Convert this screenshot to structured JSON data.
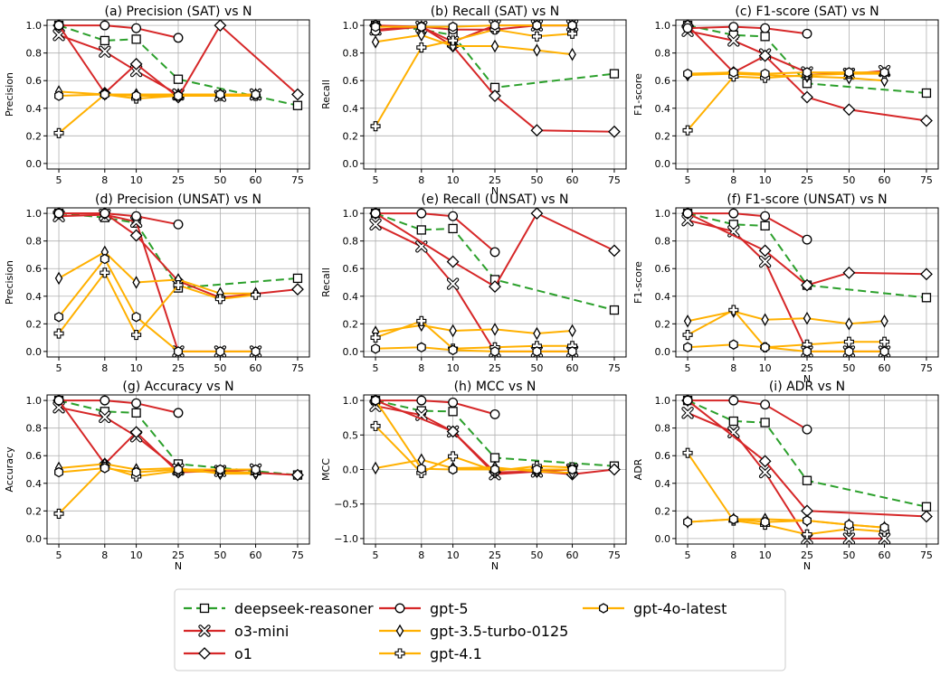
{
  "chart_data": [
    {
      "id": "a",
      "type": "line",
      "title": "(a) Precision (SAT) vs N",
      "xlabel": "",
      "ylabel": "Precision",
      "ylim": [
        0,
        1
      ],
      "yticks": [
        0,
        0.2,
        0.4,
        0.6,
        0.8,
        1.0
      ],
      "ytick_labels": [
        "0.0",
        "0.2",
        "0.4",
        "0.6",
        "0.8",
        "1.0"
      ],
      "x": [
        "5",
        "8",
        "10",
        "25",
        "50",
        "60",
        "75"
      ],
      "series": [
        {
          "name": "deepseek-reasoner",
          "values": [
            1.0,
            0.89,
            0.9,
            0.61,
            null,
            null,
            0.42
          ]
        },
        {
          "name": "o3-mini",
          "values": [
            0.93,
            0.81,
            0.67,
            0.5,
            0.49,
            0.5,
            null
          ]
        },
        {
          "name": "o1",
          "values": [
            1.0,
            0.51,
            0.72,
            0.48,
            1.0,
            null,
            0.5
          ]
        },
        {
          "name": "gpt-5",
          "values": [
            1.0,
            1.0,
            0.98,
            0.91,
            null,
            null,
            null
          ]
        },
        {
          "name": "gpt-3.5-turbo-0125",
          "values": [
            0.52,
            0.5,
            0.5,
            0.5,
            0.5,
            0.5,
            null
          ]
        },
        {
          "name": "gpt-4.1",
          "values": [
            0.22,
            0.5,
            0.47,
            0.49,
            0.49,
            0.49,
            null
          ]
        },
        {
          "name": "gpt-4o-latest",
          "values": [
            0.49,
            0.5,
            0.49,
            0.49,
            0.5,
            0.5,
            null
          ]
        }
      ]
    },
    {
      "id": "b",
      "type": "line",
      "title": "(b) Recall (SAT) vs N",
      "xlabel": "N",
      "ylabel": "Recall",
      "ylim": [
        0,
        1
      ],
      "yticks": [
        0,
        0.2,
        0.4,
        0.6,
        0.8,
        1.0
      ],
      "ytick_labels": [
        "0.0",
        "0.2",
        "0.4",
        "0.6",
        "0.8",
        "1.0"
      ],
      "x": [
        "5",
        "8",
        "10",
        "25",
        "50",
        "60",
        "75"
      ],
      "series": [
        {
          "name": "deepseek-reasoner",
          "values": [
            1.0,
            0.97,
            0.93,
            0.55,
            null,
            null,
            0.65
          ]
        },
        {
          "name": "o3-mini",
          "values": [
            0.97,
            0.99,
            0.88,
            1.0,
            1.0,
            1.0,
            null
          ]
        },
        {
          "name": "o1",
          "values": [
            1.0,
            0.99,
            0.85,
            0.49,
            0.24,
            null,
            0.23
          ]
        },
        {
          "name": "gpt-5",
          "values": [
            0.96,
            0.99,
            0.97,
            0.97,
            1.0,
            1.0,
            null
          ]
        },
        {
          "name": "gpt-3.5-turbo-0125",
          "values": [
            0.88,
            0.93,
            0.85,
            0.85,
            0.82,
            0.79,
            null
          ]
        },
        {
          "name": "gpt-4.1",
          "values": [
            0.27,
            0.84,
            0.89,
            0.97,
            0.92,
            0.94,
            null
          ]
        },
        {
          "name": "gpt-4o-latest",
          "values": [
            0.99,
            0.99,
            0.99,
            1.0,
            1.0,
            1.0,
            null
          ]
        }
      ]
    },
    {
      "id": "c",
      "type": "line",
      "title": "(c) F1-score (SAT) vs N",
      "xlabel": "",
      "ylabel": "F1-score",
      "ylim": [
        0,
        1
      ],
      "yticks": [
        0,
        0.2,
        0.4,
        0.6,
        0.8,
        1.0
      ],
      "ytick_labels": [
        "0.0",
        "0.2",
        "0.4",
        "0.6",
        "0.8",
        "1.0"
      ],
      "x": [
        "5",
        "8",
        "10",
        "25",
        "50",
        "60",
        "75"
      ],
      "series": [
        {
          "name": "deepseek-reasoner",
          "values": [
            1.0,
            0.93,
            0.92,
            0.58,
            null,
            null,
            0.51
          ]
        },
        {
          "name": "o3-mini",
          "values": [
            0.96,
            0.89,
            0.79,
            0.66,
            0.65,
            0.67,
            null
          ]
        },
        {
          "name": "o1",
          "values": [
            1.0,
            0.66,
            0.78,
            0.48,
            0.39,
            null,
            0.31
          ]
        },
        {
          "name": "gpt-5",
          "values": [
            0.98,
            0.99,
            0.98,
            0.94,
            null,
            null,
            null
          ]
        },
        {
          "name": "gpt-3.5-turbo-0125",
          "values": [
            0.64,
            0.65,
            0.64,
            0.63,
            0.62,
            0.6,
            null
          ]
        },
        {
          "name": "gpt-4.1",
          "values": [
            0.24,
            0.63,
            0.62,
            0.64,
            0.65,
            0.65,
            null
          ]
        },
        {
          "name": "gpt-4o-latest",
          "values": [
            0.65,
            0.66,
            0.65,
            0.66,
            0.66,
            0.66,
            null
          ]
        }
      ]
    },
    {
      "id": "d",
      "type": "line",
      "title": "(d) Precision (UNSAT) vs N",
      "xlabel": "",
      "ylabel": "Precision",
      "ylim": [
        0,
        1
      ],
      "yticks": [
        0,
        0.2,
        0.4,
        0.6,
        0.8,
        1.0
      ],
      "ytick_labels": [
        "0.0",
        "0.2",
        "0.4",
        "0.6",
        "0.8",
        "1.0"
      ],
      "x": [
        "5",
        "8",
        "10",
        "25",
        "50",
        "60",
        "75"
      ],
      "series": [
        {
          "name": "deepseek-reasoner",
          "values": [
            1.0,
            0.97,
            0.93,
            0.46,
            null,
            null,
            0.53
          ]
        },
        {
          "name": "o3-mini",
          "values": [
            0.98,
            0.99,
            0.94,
            0.0,
            0.0,
            0.0,
            null
          ]
        },
        {
          "name": "o1",
          "values": [
            1.0,
            1.0,
            0.84,
            0.51,
            0.39,
            null,
            0.45
          ]
        },
        {
          "name": "gpt-5",
          "values": [
            1.0,
            1.0,
            0.98,
            0.92,
            null,
            null,
            null
          ]
        },
        {
          "name": "gpt-3.5-turbo-0125",
          "values": [
            0.53,
            0.72,
            0.5,
            0.52,
            0.42,
            0.42,
            null
          ]
        },
        {
          "name": "gpt-4.1",
          "values": [
            0.13,
            0.57,
            0.12,
            0.48,
            0.38,
            0.41,
            null
          ]
        },
        {
          "name": "gpt-4o-latest",
          "values": [
            0.25,
            0.67,
            0.25,
            0.0,
            0.0,
            0.0,
            null
          ]
        }
      ]
    },
    {
      "id": "e",
      "type": "line",
      "title": "(e) Recall (UNSAT) vs N",
      "xlabel": "",
      "ylabel": "Recall",
      "ylim": [
        0,
        1
      ],
      "yticks": [
        0,
        0.2,
        0.4,
        0.6,
        0.8,
        1.0
      ],
      "ytick_labels": [
        "0.0",
        "0.2",
        "0.4",
        "0.6",
        "0.8",
        "1.0"
      ],
      "x": [
        "5",
        "8",
        "10",
        "25",
        "50",
        "60",
        "75"
      ],
      "series": [
        {
          "name": "deepseek-reasoner",
          "values": [
            1.0,
            0.88,
            0.89,
            0.52,
            null,
            null,
            0.3
          ]
        },
        {
          "name": "o3-mini",
          "values": [
            0.92,
            0.76,
            0.49,
            0.0,
            0.0,
            0.0,
            null
          ]
        },
        {
          "name": "o1",
          "values": [
            1.0,
            null,
            0.65,
            0.47,
            1.0,
            null,
            0.73
          ]
        },
        {
          "name": "gpt-5",
          "values": [
            1.0,
            1.0,
            0.98,
            0.72,
            null,
            null,
            null
          ]
        },
        {
          "name": "gpt-3.5-turbo-0125",
          "values": [
            0.14,
            0.19,
            0.15,
            0.16,
            0.13,
            0.15,
            null
          ]
        },
        {
          "name": "gpt-4.1",
          "values": [
            0.1,
            0.22,
            0.02,
            0.03,
            0.04,
            0.04,
            null
          ]
        },
        {
          "name": "gpt-4o-latest",
          "values": [
            0.02,
            0.03,
            0.01,
            0.0,
            0.0,
            0.0,
            null
          ]
        }
      ]
    },
    {
      "id": "f",
      "type": "line",
      "title": "(f) F1-score (UNSAT) vs N",
      "xlabel": "N",
      "ylabel": "F1-score",
      "ylim": [
        0,
        1
      ],
      "yticks": [
        0,
        0.2,
        0.4,
        0.6,
        0.8,
        1.0
      ],
      "ytick_labels": [
        "0.0",
        "0.2",
        "0.4",
        "0.6",
        "0.8",
        "1.0"
      ],
      "x": [
        "5",
        "8",
        "10",
        "25",
        "50",
        "60",
        "75"
      ],
      "series": [
        {
          "name": "deepseek-reasoner",
          "values": [
            1.0,
            0.92,
            0.91,
            0.48,
            null,
            null,
            0.39
          ]
        },
        {
          "name": "o3-mini",
          "values": [
            0.95,
            0.87,
            0.65,
            0.0,
            0.0,
            0.0,
            null
          ]
        },
        {
          "name": "o1",
          "values": [
            1.0,
            null,
            0.73,
            0.48,
            0.57,
            null,
            0.56
          ]
        },
        {
          "name": "gpt-5",
          "values": [
            1.0,
            1.0,
            0.98,
            0.81,
            null,
            null,
            null
          ]
        },
        {
          "name": "gpt-3.5-turbo-0125",
          "values": [
            0.22,
            0.29,
            0.23,
            0.24,
            0.2,
            0.22,
            null
          ]
        },
        {
          "name": "gpt-4.1",
          "values": [
            0.12,
            0.3,
            0.03,
            0.05,
            0.07,
            0.07,
            null
          ]
        },
        {
          "name": "gpt-4o-latest",
          "values": [
            0.03,
            0.05,
            0.03,
            0.0,
            0.0,
            0.0,
            null
          ]
        }
      ]
    },
    {
      "id": "g",
      "type": "line",
      "title": "(g) Accuracy vs N",
      "xlabel": "N",
      "ylabel": "Accuracy",
      "ylim": [
        0,
        1
      ],
      "yticks": [
        0,
        0.2,
        0.4,
        0.6,
        0.8,
        1.0
      ],
      "ytick_labels": [
        "0.0",
        "0.2",
        "0.4",
        "0.6",
        "0.8",
        "1.0"
      ],
      "x": [
        "5",
        "8",
        "10",
        "25",
        "50",
        "60",
        "75"
      ],
      "series": [
        {
          "name": "deepseek-reasoner",
          "values": [
            1.0,
            0.92,
            0.91,
            0.54,
            null,
            null,
            0.46
          ]
        },
        {
          "name": "o3-mini",
          "values": [
            0.95,
            0.88,
            0.74,
            0.5,
            0.49,
            0.5,
            null
          ]
        },
        {
          "name": "o1",
          "values": [
            1.0,
            0.54,
            0.77,
            0.48,
            0.49,
            null,
            0.46
          ]
        },
        {
          "name": "gpt-5",
          "values": [
            1.0,
            1.0,
            0.98,
            0.91,
            null,
            null,
            null
          ]
        },
        {
          "name": "gpt-3.5-turbo-0125",
          "values": [
            0.51,
            0.54,
            0.5,
            0.51,
            0.47,
            0.47,
            null
          ]
        },
        {
          "name": "gpt-4.1",
          "values": [
            0.18,
            0.52,
            0.45,
            0.49,
            0.48,
            0.48,
            null
          ]
        },
        {
          "name": "gpt-4o-latest",
          "values": [
            0.48,
            0.51,
            0.48,
            0.5,
            0.5,
            0.5,
            null
          ]
        }
      ]
    },
    {
      "id": "h",
      "type": "line",
      "title": "(h) MCC vs N",
      "xlabel": "N",
      "ylabel": "MCC",
      "ylim": [
        -1,
        1
      ],
      "yticks": [
        -1,
        -0.5,
        0,
        0.5,
        1
      ],
      "ytick_labels": [
        "−1.0",
        "−0.5",
        "0.0",
        "0.5",
        "1.0"
      ],
      "x": [
        "5",
        "8",
        "10",
        "25",
        "50",
        "60",
        "75"
      ],
      "series": [
        {
          "name": "deepseek-reasoner",
          "values": [
            1.0,
            0.85,
            0.84,
            0.17,
            null,
            null,
            0.05
          ]
        },
        {
          "name": "o3-mini",
          "values": [
            0.92,
            0.79,
            0.55,
            -0.07,
            -0.03,
            0.0,
            null
          ]
        },
        {
          "name": "o1",
          "values": [
            1.0,
            null,
            0.55,
            -0.04,
            -0.03,
            -0.07,
            0.0
          ]
        },
        {
          "name": "gpt-5",
          "values": [
            1.0,
            1.0,
            0.97,
            0.8,
            null,
            null,
            null
          ]
        },
        {
          "name": "gpt-3.5-turbo-0125",
          "values": [
            0.02,
            0.14,
            0.02,
            0.03,
            -0.03,
            -0.05,
            null
          ]
        },
        {
          "name": "gpt-4.1",
          "values": [
            0.63,
            -0.05,
            0.19,
            -0.02,
            0.05,
            0.03,
            null
          ]
        },
        {
          "name": "gpt-4o-latest",
          "values": [
            1.0,
            0.01,
            0.0,
            0.0,
            0.0,
            0.0,
            null
          ]
        }
      ]
    },
    {
      "id": "i",
      "type": "line",
      "title": "(i) ADR vs N",
      "xlabel": "N",
      "ylabel": "ADR",
      "ylim": [
        0,
        1
      ],
      "yticks": [
        0,
        0.2,
        0.4,
        0.6,
        0.8,
        1.0
      ],
      "ytick_labels": [
        "0.0",
        "0.2",
        "0.4",
        "0.6",
        "0.8",
        "1.0"
      ],
      "x": [
        "5",
        "8",
        "10",
        "25",
        "50",
        "60",
        "75"
      ],
      "series": [
        {
          "name": "deepseek-reasoner",
          "values": [
            1.0,
            0.85,
            0.84,
            0.42,
            null,
            null,
            0.23
          ]
        },
        {
          "name": "o3-mini",
          "values": [
            0.91,
            0.77,
            0.48,
            0.0,
            0.0,
            0.0,
            null
          ]
        },
        {
          "name": "o1",
          "values": [
            1.0,
            null,
            0.56,
            0.2,
            null,
            null,
            0.16
          ]
        },
        {
          "name": "gpt-5",
          "values": [
            1.0,
            1.0,
            0.97,
            0.79,
            null,
            null,
            null
          ]
        },
        {
          "name": "gpt-3.5-turbo-0125",
          "values": [
            0.12,
            0.14,
            0.14,
            0.13,
            0.1,
            0.08,
            null
          ]
        },
        {
          "name": "gpt-4.1",
          "values": [
            0.62,
            0.13,
            0.1,
            0.03,
            0.07,
            0.05,
            null
          ]
        },
        {
          "name": "gpt-4o-latest",
          "values": [
            0.12,
            0.14,
            0.12,
            0.13,
            0.1,
            0.08,
            null
          ]
        }
      ]
    }
  ],
  "legend": {
    "placement": "bottom-center",
    "items": [
      {
        "name": "deepseek-reasoner",
        "color": "#2ca02c",
        "marker": "square",
        "dash": true
      },
      {
        "name": "o3-mini",
        "color": "#d62728",
        "marker": "x",
        "dash": false
      },
      {
        "name": "o1",
        "color": "#d62728",
        "marker": "diamond",
        "dash": false
      },
      {
        "name": "gpt-5",
        "color": "#d62728",
        "marker": "circle",
        "dash": false
      },
      {
        "name": "gpt-3.5-turbo-0125",
        "color": "#ffb000",
        "marker": "thin-diamond",
        "dash": false
      },
      {
        "name": "gpt-4.1",
        "color": "#ffb000",
        "marker": "plus",
        "dash": false
      },
      {
        "name": "gpt-4o-latest",
        "color": "#ffb000",
        "marker": "hexagon",
        "dash": false
      }
    ]
  }
}
